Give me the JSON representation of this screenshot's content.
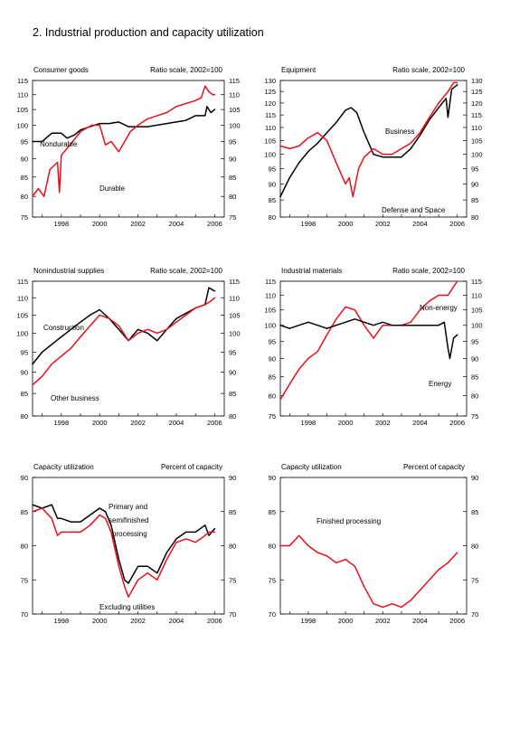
{
  "figure_title": "2.  Industrial production and capacity utilization",
  "colors": {
    "black_series": "#000000",
    "red_series": "#e8101c"
  },
  "chart_data": [
    {
      "type": "line",
      "title": "Consumer goods",
      "unit_label": "Ratio scale, 2002=100",
      "x_ticks": [
        "1998",
        "2000",
        "2002",
        "2004",
        "2006"
      ],
      "xlim": [
        1996.5,
        2006.5
      ],
      "ylim": [
        75,
        115
      ],
      "y_ticks": [
        75,
        80,
        85,
        90,
        95,
        100,
        105,
        110,
        115
      ],
      "log_scale": true,
      "series": [
        {
          "name": "Nondurable",
          "color": "#000000",
          "x": [
            1996.5,
            1997.0,
            1997.5,
            1998.0,
            1998.3,
            1998.7,
            1999.0,
            1999.5,
            2000.0,
            2000.5,
            2001.0,
            2001.5,
            2002.0,
            2002.5,
            2003.0,
            2003.5,
            2004.0,
            2004.5,
            2005.0,
            2005.5,
            2005.6,
            2005.8,
            2006.0
          ],
          "y": [
            95,
            95,
            97.5,
            97.5,
            96,
            97,
            98.5,
            99.5,
            100.5,
            100.5,
            101,
            99.5,
            99.5,
            99.5,
            100,
            100.5,
            101,
            101.5,
            103,
            103,
            106,
            104,
            105
          ]
        },
        {
          "name": "Durable",
          "color": "#e8101c",
          "x": [
            1996.5,
            1996.8,
            1997.1,
            1997.4,
            1997.6,
            1997.8,
            1997.9,
            1998.0,
            1998.3,
            1998.6,
            1999.0,
            1999.3,
            1999.6,
            2000.0,
            2000.3,
            2000.6,
            2001.0,
            2001.3,
            2001.6,
            2002.0,
            2002.5,
            2003.0,
            2003.5,
            2004.0,
            2004.5,
            2005.0,
            2005.3,
            2005.5,
            2005.7,
            2005.9,
            2006.0
          ],
          "y": [
            80,
            82,
            80,
            87,
            88,
            89,
            81,
            91,
            93,
            95,
            98,
            99,
            100,
            100,
            94,
            95,
            92,
            95,
            98,
            100,
            102,
            103,
            104,
            106,
            107,
            108,
            109,
            113,
            111,
            110,
            110
          ]
        }
      ],
      "annotations": [
        "Nondurable",
        "Durable"
      ]
    },
    {
      "type": "line",
      "title": "Equipment",
      "unit_label": "Ratio scale, 2002=100",
      "x_ticks": [
        "1998",
        "2000",
        "2002",
        "2004",
        "2006"
      ],
      "xlim": [
        1996.5,
        2006.5
      ],
      "ylim": [
        80,
        130
      ],
      "y_ticks": [
        80,
        85,
        90,
        95,
        100,
        105,
        110,
        115,
        120,
        125,
        130
      ],
      "log_scale": true,
      "series": [
        {
          "name": "Business",
          "color": "#000000",
          "x": [
            1996.5,
            1997.0,
            1997.5,
            1998.0,
            1998.5,
            1999.0,
            1999.5,
            2000.0,
            2000.3,
            2000.6,
            2001.0,
            2001.5,
            2002.0,
            2002.5,
            2003.0,
            2003.5,
            2004.0,
            2004.5,
            2005.0,
            2005.4,
            2005.5,
            2005.7,
            2006.0
          ],
          "y": [
            86,
            92,
            97,
            101,
            104,
            108,
            112,
            117,
            118,
            116,
            108,
            100,
            99,
            99,
            99,
            102,
            107,
            113,
            118,
            122,
            114,
            126,
            128
          ]
        },
        {
          "name": "Defense and Space",
          "color": "#e8101c",
          "x": [
            1996.5,
            1997.0,
            1997.5,
            1998.0,
            1998.5,
            1999.0,
            1999.5,
            2000.0,
            2000.2,
            2000.4,
            2000.7,
            2001.0,
            2001.5,
            2002.0,
            2002.5,
            2003.0,
            2003.5,
            2004.0,
            2004.5,
            2005.0,
            2005.5,
            2005.8,
            2006.0
          ],
          "y": [
            103,
            102,
            103,
            106,
            108,
            105,
            97,
            90,
            92,
            86,
            95,
            99,
            102,
            100,
            100,
            102,
            104,
            108,
            114,
            120,
            125,
            129,
            129
          ]
        }
      ],
      "annotations": [
        "Business",
        "Defense and Space"
      ]
    },
    {
      "type": "line",
      "title": "Nonindustrial supplies",
      "unit_label": "Ratio scale, 2002=100",
      "x_ticks": [
        "1998",
        "2000",
        "2002",
        "2004",
        "2006"
      ],
      "xlim": [
        1996.5,
        2006.5
      ],
      "ylim": [
        80,
        115
      ],
      "y_ticks": [
        80,
        85,
        90,
        95,
        100,
        105,
        110,
        115
      ],
      "log_scale": true,
      "series": [
        {
          "name": "Construction",
          "color": "#000000",
          "x": [
            1996.5,
            1997.0,
            1997.5,
            1998.0,
            1998.5,
            1999.0,
            1999.5,
            2000.0,
            2000.5,
            2001.0,
            2001.5,
            2002.0,
            2002.5,
            2003.0,
            2003.5,
            2004.0,
            2004.5,
            2005.0,
            2005.5,
            2005.7,
            2006.0
          ],
          "y": [
            92,
            95,
            97,
            99,
            101,
            103,
            105,
            106.5,
            104,
            101,
            98,
            101,
            100,
            98,
            101,
            104,
            105.5,
            107,
            108,
            113,
            112
          ]
        },
        {
          "name": "Other business",
          "color": "#e8101c",
          "x": [
            1996.5,
            1997.0,
            1997.5,
            1998.0,
            1998.5,
            1999.0,
            1999.5,
            2000.0,
            2000.5,
            2001.0,
            2001.5,
            2002.0,
            2002.5,
            2003.0,
            2003.5,
            2004.0,
            2004.5,
            2005.0,
            2005.5,
            2005.8,
            2006.0
          ],
          "y": [
            87,
            89,
            92,
            94,
            96,
            99,
            102,
            105,
            104,
            102,
            98,
            100,
            101,
            100,
            101,
            103,
            105,
            107,
            108,
            109,
            110
          ]
        }
      ],
      "annotations": [
        "Construction",
        "Other business"
      ]
    },
    {
      "type": "line",
      "title": "Industrial materials",
      "unit_label": "Ratio scale, 2002=100",
      "x_ticks": [
        "1998",
        "2000",
        "2002",
        "2004",
        "2006"
      ],
      "xlim": [
        1996.5,
        2006.5
      ],
      "ylim": [
        75,
        115
      ],
      "y_ticks": [
        75,
        80,
        85,
        90,
        95,
        100,
        105,
        110,
        115
      ],
      "log_scale": true,
      "series": [
        {
          "name": "Non-energy",
          "color": "#e8101c",
          "x": [
            1996.5,
            1997.0,
            1997.5,
            1998.0,
            1998.5,
            1999.0,
            1999.5,
            2000.0,
            2000.5,
            2001.0,
            2001.5,
            2002.0,
            2002.5,
            2003.0,
            2003.5,
            2004.0,
            2004.5,
            2005.0,
            2005.5,
            2005.8,
            2006.0
          ],
          "y": [
            79,
            83,
            87,
            90,
            92,
            97,
            102,
            106,
            105,
            100,
            96,
            100,
            100,
            100,
            101,
            105,
            108,
            110,
            110,
            113,
            115
          ]
        },
        {
          "name": "Energy",
          "color": "#000000",
          "x": [
            1996.5,
            1997.0,
            1997.5,
            1998.0,
            1998.5,
            1999.0,
            1999.5,
            2000.0,
            2000.5,
            2001.0,
            2001.5,
            2002.0,
            2002.5,
            2003.0,
            2003.5,
            2004.0,
            2004.5,
            2005.0,
            2005.3,
            2005.5,
            2005.6,
            2005.8,
            2006.0
          ],
          "y": [
            100,
            99,
            100,
            101,
            100,
            99,
            100,
            101,
            102,
            101,
            100,
            101,
            100,
            100,
            100,
            100,
            100,
            100,
            101,
            93,
            90,
            96,
            97
          ]
        }
      ],
      "annotations": [
        "Non-energy",
        "Energy"
      ]
    },
    {
      "type": "line",
      "title": "Capacity utilization",
      "unit_label": "Percent of capacity",
      "x_ticks": [
        "1998",
        "2000",
        "2002",
        "2004",
        "2006"
      ],
      "xlim": [
        1996.5,
        2006.5
      ],
      "ylim": [
        70,
        90
      ],
      "y_ticks": [
        70,
        75,
        80,
        85,
        90
      ],
      "log_scale": false,
      "series": [
        {
          "name": "Primary and semifinished processing",
          "color": "#000000",
          "x": [
            1996.5,
            1997.0,
            1997.5,
            1997.8,
            1998.0,
            1998.5,
            1999.0,
            1999.5,
            2000.0,
            2000.3,
            2000.6,
            2001.0,
            2001.3,
            2001.5,
            2002.0,
            2002.5,
            2003.0,
            2003.5,
            2004.0,
            2004.5,
            2005.0,
            2005.5,
            2005.7,
            2006.0
          ],
          "y": [
            86,
            85.5,
            86,
            84,
            84,
            83.5,
            83.5,
            84.5,
            85.5,
            85,
            83,
            78,
            75,
            74.5,
            77,
            77,
            76,
            79,
            81,
            82,
            82,
            83,
            81.5,
            82.5
          ]
        },
        {
          "name": "Excluding utilities",
          "color": "#e8101c",
          "x": [
            1996.5,
            1997.0,
            1997.5,
            1997.8,
            1998.0,
            1998.5,
            1999.0,
            1999.5,
            2000.0,
            2000.3,
            2000.6,
            2001.0,
            2001.3,
            2001.5,
            2002.0,
            2002.5,
            2003.0,
            2003.5,
            2004.0,
            2004.5,
            2005.0,
            2005.5,
            2005.7,
            2006.0
          ],
          "y": [
            85,
            85.5,
            84,
            81.5,
            82,
            82,
            82,
            83,
            84.5,
            84,
            82,
            77,
            74,
            72.5,
            75,
            76,
            75,
            78,
            80.5,
            81,
            80.5,
            81.5,
            82,
            82
          ]
        }
      ],
      "annotations": [
        "Primary and",
        "semifinished",
        "processing",
        "Excluding utilities"
      ]
    },
    {
      "type": "line",
      "title": "Capacity utilization",
      "unit_label": "Percent of capacity",
      "x_ticks": [
        "1998",
        "2000",
        "2002",
        "2004",
        "2006"
      ],
      "xlim": [
        1996.5,
        2006.5
      ],
      "ylim": [
        70,
        90
      ],
      "y_ticks": [
        70,
        75,
        80,
        85,
        90
      ],
      "log_scale": false,
      "series": [
        {
          "name": "Finished processing",
          "color": "#e8101c",
          "x": [
            1996.5,
            1997.0,
            1997.5,
            1998.0,
            1998.5,
            1999.0,
            1999.5,
            2000.0,
            2000.5,
            2001.0,
            2001.5,
            2002.0,
            2002.5,
            2003.0,
            2003.5,
            2004.0,
            2004.5,
            2005.0,
            2005.5,
            2006.0
          ],
          "y": [
            80,
            80,
            81.5,
            80,
            79,
            78.5,
            77.5,
            78,
            77,
            74,
            71.5,
            71,
            71.5,
            71,
            72,
            73.5,
            75,
            76.5,
            77.5,
            79
          ]
        }
      ],
      "annotations": [
        "Finished processing"
      ]
    }
  ]
}
